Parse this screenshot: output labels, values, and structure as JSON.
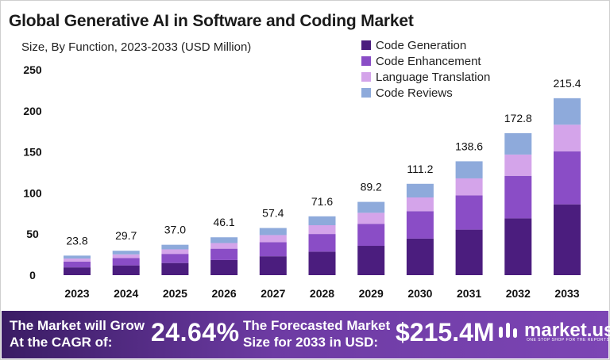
{
  "chart_data": {
    "type": "bar",
    "stacked": true,
    "title": "Global Generative AI in Software and Coding Market",
    "subtitle": "Size, By Function, 2023-2033 (USD Million)",
    "categories": [
      "2023",
      "2024",
      "2025",
      "2026",
      "2027",
      "2028",
      "2029",
      "2030",
      "2031",
      "2032",
      "2033"
    ],
    "totals": [
      "23.8",
      "29.7",
      "37.0",
      "46.1",
      "57.4",
      "71.6",
      "89.2",
      "111.2",
      "138.6",
      "172.8",
      "215.4"
    ],
    "series": [
      {
        "name": "Code Generation",
        "color": "#4b1d7e",
        "values": [
          9.5,
          11.9,
          14.8,
          18.4,
          23.0,
          28.6,
          35.7,
          44.5,
          55.4,
          69.1,
          86.2
        ]
      },
      {
        "name": "Code Enhancement",
        "color": "#8a4dc6",
        "values": [
          7.1,
          8.9,
          11.1,
          13.8,
          17.2,
          21.5,
          26.8,
          33.4,
          41.6,
          51.8,
          64.6
        ]
      },
      {
        "name": "Language Translation",
        "color": "#d4a4ea",
        "values": [
          3.6,
          4.5,
          5.5,
          6.9,
          8.6,
          10.7,
          13.4,
          16.7,
          20.8,
          25.9,
          32.3
        ]
      },
      {
        "name": "Code Reviews",
        "color": "#8eaadb",
        "values": [
          3.6,
          4.4,
          5.6,
          7.0,
          8.6,
          10.8,
          13.3,
          16.6,
          20.8,
          26.0,
          32.3
        ]
      }
    ],
    "yticks": [
      0,
      50,
      100,
      150,
      200,
      250
    ],
    "ylim": [
      0,
      250
    ],
    "grid": false,
    "legend": "top-right"
  },
  "footer": {
    "cagr_text": "The Market will Grow At the CAGR of:",
    "cagr_value": "24.64%",
    "forecast_text": "The Forecasted Market Size for 2033 in USD:",
    "forecast_value": "$215.4M",
    "brand": "market.us",
    "brand_tagline": "ONE STOP SHOP FOR THE REPORTS"
  }
}
